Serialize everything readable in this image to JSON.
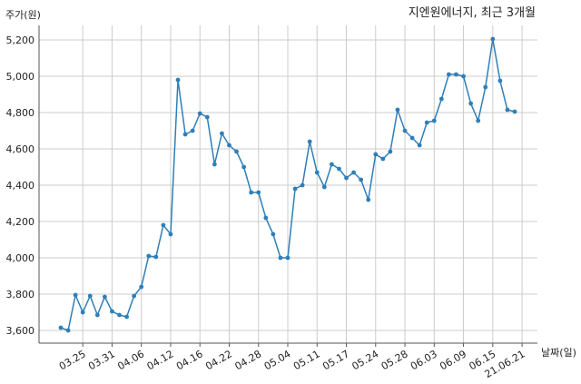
{
  "chart_data": {
    "type": "line",
    "title": "지엔원에너지, 최근 3개월",
    "ylabel": "주가(원)",
    "xlabel": "날짜(일)",
    "ylim": [
      3530,
      5280
    ],
    "yticks": [
      3600,
      3800,
      4000,
      4200,
      4400,
      4600,
      4800,
      5000,
      5200
    ],
    "ytick_labels": [
      "3,600",
      "3,800",
      "4,000",
      "4,200",
      "4,400",
      "4,600",
      "4,800",
      "5,000",
      "5,200"
    ],
    "xtick_labels": [
      "03.25",
      "03.31",
      "04.06",
      "04.12",
      "04.16",
      "04.22",
      "04.28",
      "05.04",
      "05.11",
      "05.17",
      "05.24",
      "05.28",
      "06.03",
      "06.09",
      "06.15",
      "21.06.21"
    ],
    "xtick_index": [
      3,
      7,
      11,
      15,
      19,
      23,
      27,
      31,
      35,
      39,
      43,
      47,
      51,
      55,
      59,
      63
    ],
    "grid": true,
    "color": "#2e7fb8",
    "series": [
      {
        "values": [
          3615,
          3600,
          3795,
          3700,
          3790,
          3685,
          3785,
          3705,
          3685,
          3675,
          3790,
          3840,
          4010,
          4005,
          4180,
          4130,
          4980,
          4680,
          4700,
          4795,
          4775,
          4515,
          4685,
          4620,
          4585,
          4500,
          4360,
          4360,
          4220,
          4130,
          4000,
          4000,
          4380,
          4400,
          4640,
          4470,
          4390,
          4515,
          4490,
          4440,
          4470,
          4430,
          4320,
          4570,
          4545,
          4585,
          4815,
          4700,
          4660,
          4620,
          4745,
          4755,
          4875,
          5010,
          5010,
          5000,
          4850,
          4755,
          4940,
          5205,
          4975,
          4815,
          4805
        ]
      }
    ]
  }
}
